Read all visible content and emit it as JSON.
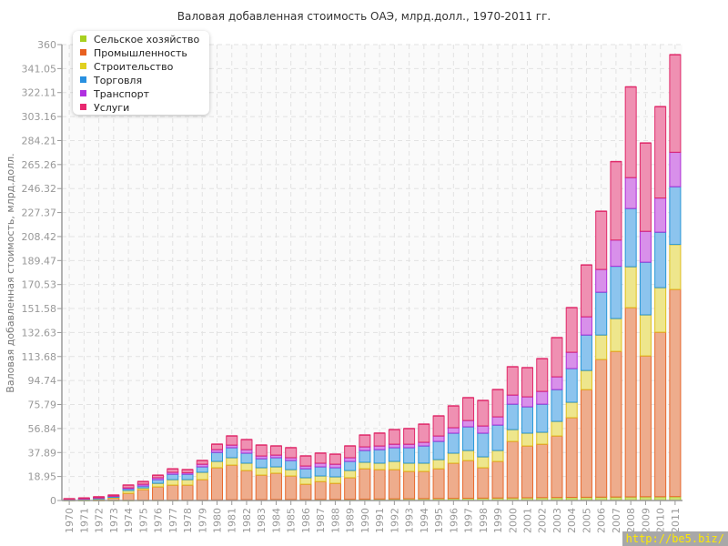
{
  "chart_data": {
    "type": "bar",
    "stacked": true,
    "title": "Валовая добавленная стоимость ОАЭ, млрд.долл., 1970-2011 гг.",
    "xlabel": "",
    "ylabel": "Валовая добавленная стоимость, млрд.долл.",
    "ylim": [
      0,
      360
    ],
    "yticks": [
      "0",
      "18.95",
      "37.89",
      "56.84",
      "75.79",
      "94.74",
      "113.68",
      "132.63",
      "151.58",
      "170.53",
      "189.47",
      "208.42",
      "227.37",
      "246.32",
      "265.26",
      "284.21",
      "303.16",
      "322.11",
      "341.05",
      "360"
    ],
    "grid": true,
    "legend_position": "top-left",
    "categories": [
      "1970",
      "1971",
      "1972",
      "1973",
      "1974",
      "1975",
      "1976",
      "1977",
      "1978",
      "1979",
      "1980",
      "1981",
      "1982",
      "1983",
      "1984",
      "1985",
      "1986",
      "1987",
      "1988",
      "1989",
      "1990",
      "1991",
      "1992",
      "1993",
      "1994",
      "1995",
      "1996",
      "1997",
      "1998",
      "1999",
      "2000",
      "2001",
      "2002",
      "2003",
      "2004",
      "2005",
      "2006",
      "2007",
      "2008",
      "2009",
      "2010",
      "2011"
    ],
    "series": [
      {
        "name": "Сельское хозяйство",
        "color": "#a8d020",
        "fill": "#cde070",
        "stroke": "#a8c820",
        "values": [
          0.1,
          0.1,
          0.1,
          0.1,
          0.1,
          0.2,
          0.2,
          0.2,
          0.3,
          0.3,
          0.5,
          0.6,
          0.7,
          0.7,
          0.8,
          0.8,
          0.8,
          0.9,
          0.9,
          1.0,
          1.1,
          1.2,
          1.3,
          1.4,
          1.5,
          1.6,
          1.7,
          1.8,
          1.9,
          2.0,
          2.1,
          2.2,
          2.3,
          2.4,
          2.5,
          2.6,
          2.7,
          2.8,
          2.9,
          3.0,
          3.0,
          3.1
        ]
      },
      {
        "name": "Промышленность",
        "color": "#e86020",
        "fill": "#eeac8c",
        "stroke": "#e8692e",
        "values": [
          0.4,
          0.6,
          0.9,
          1.9,
          5.6,
          8.4,
          10.6,
          12.0,
          11.9,
          16.2,
          25.4,
          27.4,
          23.0,
          19.4,
          20.8,
          18.6,
          12.1,
          14.1,
          12.7,
          17.0,
          24.0,
          23.2,
          23.1,
          21.6,
          21.5,
          23.5,
          27.8,
          29.8,
          24.0,
          28.9,
          44.6,
          40.9,
          42.2,
          48.6,
          62.9,
          85.0,
          108.7,
          115.0,
          149.4,
          111.2,
          129.9,
          163.6
        ]
      },
      {
        "name": "Строительство",
        "color": "#e0d020",
        "fill": "#eee68c",
        "stroke": "#e0c020",
        "values": [
          0.2,
          0.2,
          0.3,
          0.5,
          2.2,
          1.4,
          2.8,
          4.3,
          4.3,
          5.8,
          5.0,
          5.8,
          5.8,
          5.8,
          5.0,
          5.0,
          5.1,
          4.4,
          5.1,
          5.7,
          5.1,
          5.1,
          6.5,
          6.5,
          6.5,
          7.2,
          7.9,
          7.9,
          8.6,
          8.6,
          9.3,
          10.1,
          9.4,
          11.5,
          12.2,
          15.1,
          19.3,
          25.9,
          32.3,
          32.4,
          35.2,
          35.5
        ]
      },
      {
        "name": "Торговля",
        "color": "#2890e0",
        "fill": "#8cc4ee",
        "stroke": "#2a98d8",
        "values": [
          0.3,
          0.4,
          0.6,
          0.7,
          1.4,
          1.5,
          2.9,
          4.3,
          4.3,
          4.3,
          7.1,
          7.9,
          7.9,
          7.1,
          7.2,
          7.2,
          7.1,
          7.2,
          7.2,
          7.2,
          9.3,
          10.7,
          10.8,
          12.2,
          13.6,
          14.4,
          15.8,
          18.7,
          18.7,
          20.1,
          20.1,
          20.8,
          22.2,
          25.1,
          26.6,
          28.0,
          33.8,
          41.3,
          46.0,
          41.6,
          43.8,
          45.6
        ]
      },
      {
        "name": "Транспорт",
        "color": "#b030e0",
        "fill": "#d890ea",
        "stroke": "#b030d8",
        "values": [
          0.1,
          0.2,
          0.3,
          0.4,
          0.7,
          1.4,
          1.5,
          1.5,
          1.2,
          2.1,
          2.2,
          2.1,
          2.8,
          2.2,
          2.1,
          2.2,
          2.2,
          2.9,
          2.8,
          2.9,
          2.9,
          2.9,
          2.8,
          2.8,
          2.9,
          4.3,
          4.3,
          5.0,
          5.7,
          6.5,
          7.2,
          7.9,
          10.1,
          10.1,
          12.9,
          14.4,
          18.0,
          20.7,
          24.4,
          24.4,
          27.0,
          27.2
        ]
      },
      {
        "name": "Услуги",
        "color": "#e82870",
        "fill": "#ef90b2",
        "stroke": "#e02a6a",
        "values": [
          0.3,
          0.5,
          0.7,
          0.7,
          2.2,
          2.1,
          2.0,
          2.7,
          2.4,
          2.9,
          4.3,
          7.2,
          7.9,
          8.6,
          7.2,
          7.9,
          7.9,
          7.9,
          7.9,
          9.3,
          9.3,
          10.1,
          11.5,
          12.3,
          14.3,
          15.8,
          17.2,
          18.0,
          20.1,
          21.5,
          22.3,
          23.0,
          25.8,
          30.9,
          35.2,
          40.9,
          45.9,
          61.9,
          71.6,
          69.7,
          72.1,
          77.0
        ]
      }
    ]
  },
  "watermark": "http://be5.biz/"
}
